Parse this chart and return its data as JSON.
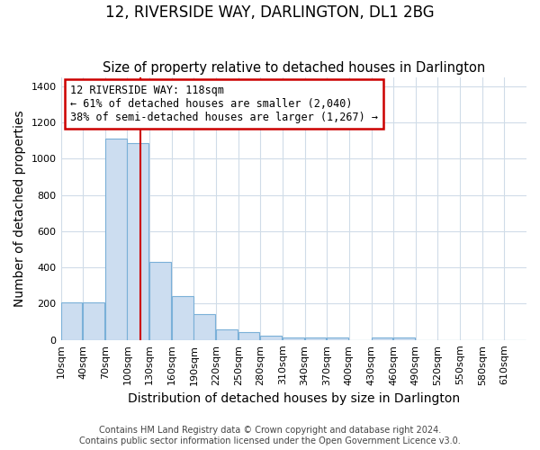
{
  "title": "12, RIVERSIDE WAY, DARLINGTON, DL1 2BG",
  "subtitle": "Size of property relative to detached houses in Darlington",
  "xlabel": "Distribution of detached houses by size in Darlington",
  "ylabel": "Number of detached properties",
  "bin_labels": [
    "10sqm",
    "40sqm",
    "70sqm",
    "100sqm",
    "130sqm",
    "160sqm",
    "190sqm",
    "220sqm",
    "250sqm",
    "280sqm",
    "310sqm",
    "340sqm",
    "370sqm",
    "400sqm",
    "430sqm",
    "460sqm",
    "490sqm",
    "520sqm",
    "550sqm",
    "580sqm",
    "610sqm"
  ],
  "bin_left": [
    10,
    40,
    70,
    100,
    130,
    160,
    190,
    220,
    250,
    280,
    310,
    340,
    370,
    400,
    430,
    460,
    490,
    520,
    550,
    580,
    610
  ],
  "bar_heights": [
    207,
    207,
    1110,
    1085,
    430,
    240,
    143,
    58,
    45,
    25,
    14,
    14,
    15,
    0,
    12,
    15,
    0,
    0,
    0,
    0,
    0
  ],
  "bar_color": "#ccddf0",
  "bar_edge_color": "#7ab0d8",
  "property_size": 118,
  "vline_color": "#cc0000",
  "annotation_text": "12 RIVERSIDE WAY: 118sqm\n← 61% of detached houses are smaller (2,040)\n38% of semi-detached houses are larger (1,267) →",
  "annotation_box_edgecolor": "#cc0000",
  "ylim": [
    0,
    1450
  ],
  "yticks": [
    0,
    200,
    400,
    600,
    800,
    1000,
    1200,
    1400
  ],
  "footer_line1": "Contains HM Land Registry data © Crown copyright and database right 2024.",
  "footer_line2": "Contains public sector information licensed under the Open Government Licence v3.0.",
  "bg_color": "#ffffff",
  "plot_bg_color": "#ffffff",
  "grid_color": "#d0dce8",
  "title_fontsize": 12,
  "subtitle_fontsize": 10.5,
  "axis_label_fontsize": 10,
  "tick_fontsize": 8,
  "footer_fontsize": 7
}
